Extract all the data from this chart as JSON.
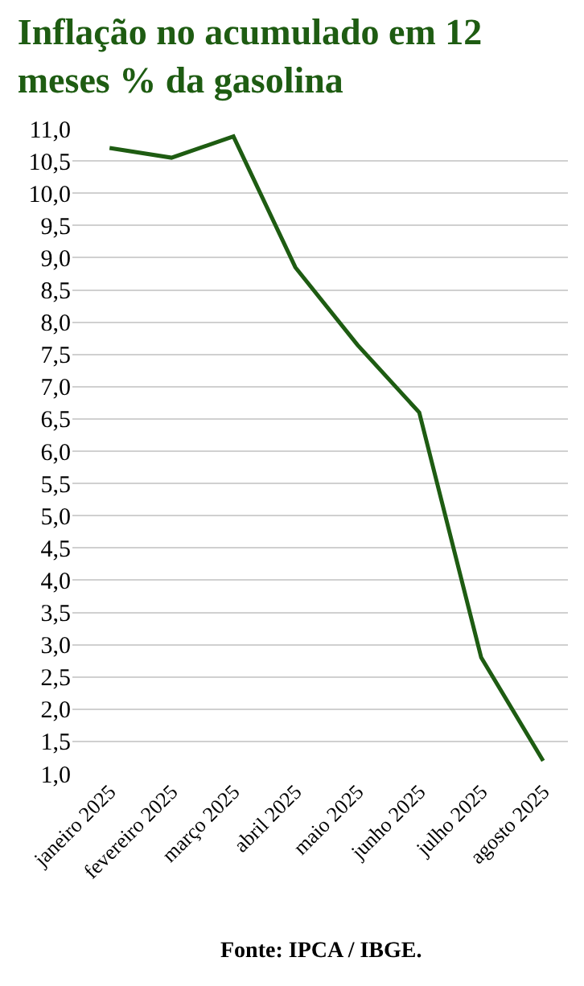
{
  "chart_data": {
    "type": "line",
    "title": "Inflação no acumulado em 12 meses % da gasolina",
    "categories": [
      "janeiro 2025",
      "fevereiro 2025",
      "março 2025",
      "abril 2025",
      "maio 2025",
      "junho 2025",
      "julho 2025",
      "agosto 2025"
    ],
    "series": [
      {
        "color": "#1e5c12",
        "values": [
          10.7,
          10.55,
          10.88,
          8.85,
          7.65,
          6.6,
          2.8,
          1.2
        ]
      }
    ],
    "ylim": [
      1.0,
      11.0
    ],
    "yticks": [
      {
        "value": 1.0,
        "label": "1,0"
      },
      {
        "value": 1.5,
        "label": "1,5"
      },
      {
        "value": 2.0,
        "label": "2,0"
      },
      {
        "value": 2.5,
        "label": "2,5"
      },
      {
        "value": 3.0,
        "label": "3,0"
      },
      {
        "value": 3.5,
        "label": "3,5"
      },
      {
        "value": 4.0,
        "label": "4,0"
      },
      {
        "value": 4.5,
        "label": "4,5"
      },
      {
        "value": 5.0,
        "label": "5,0"
      },
      {
        "value": 5.5,
        "label": "5,5"
      },
      {
        "value": 6.0,
        "label": "6,0"
      },
      {
        "value": 6.5,
        "label": "6,5"
      },
      {
        "value": 7.0,
        "label": "7,0"
      },
      {
        "value": 7.5,
        "label": "7,5"
      },
      {
        "value": 8.0,
        "label": "8,0"
      },
      {
        "value": 8.5,
        "label": "8,5"
      },
      {
        "value": 9.0,
        "label": "9,0"
      },
      {
        "value": 9.5,
        "label": "9,5"
      },
      {
        "value": 10.0,
        "label": "10,0"
      },
      {
        "value": 10.5,
        "label": "10,5"
      },
      {
        "value": 11.0,
        "label": "11,0"
      }
    ],
    "grid": "y",
    "legend": false,
    "marker": "none",
    "line_style": "solid",
    "annotations": [
      "Fonte: IPCA / IBGE."
    ]
  }
}
